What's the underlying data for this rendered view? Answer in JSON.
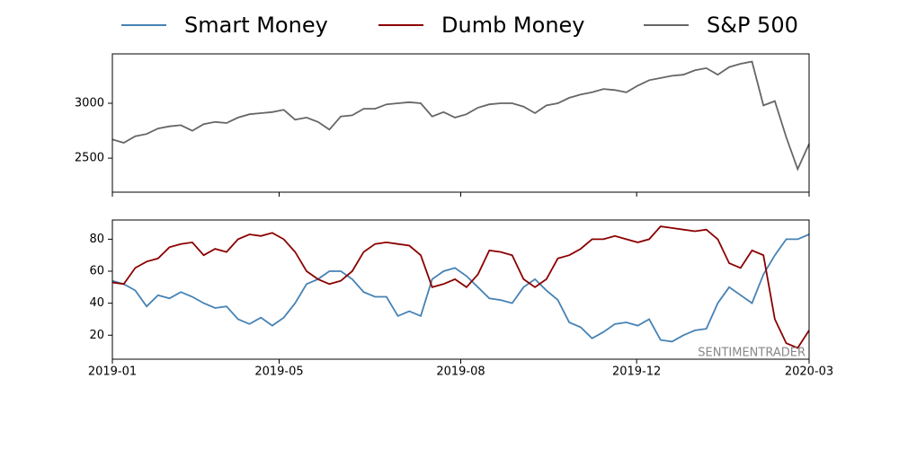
{
  "chart_data": [
    {
      "type": "line",
      "series": [
        {
          "name": "S&P 500",
          "color": "#666666",
          "values": [
            2670,
            2640,
            2700,
            2720,
            2770,
            2790,
            2800,
            2750,
            2810,
            2830,
            2820,
            2870,
            2900,
            2910,
            2920,
            2940,
            2850,
            2870,
            2830,
            2760,
            2880,
            2890,
            2950,
            2950,
            2990,
            3000,
            3010,
            3000,
            2880,
            2920,
            2870,
            2900,
            2960,
            2990,
            3000,
            3000,
            2970,
            2910,
            2980,
            3000,
            3050,
            3080,
            3100,
            3130,
            3120,
            3100,
            3160,
            3210,
            3230,
            3250,
            3260,
            3300,
            3320,
            3260,
            3330,
            3360,
            3380,
            2980,
            3020,
            2690,
            2400,
            2630
          ]
        }
      ],
      "xlim": [
        0,
        61
      ],
      "xticks": [
        {
          "value": 0,
          "label": "2019-01"
        },
        {
          "value": 14.6,
          "label": "2019-05"
        },
        {
          "value": 30.5,
          "label": "2019-08"
        },
        {
          "value": 45.9,
          "label": "2019-12"
        },
        {
          "value": 61,
          "label": "2020-03"
        }
      ],
      "ylim": [
        2190,
        3450
      ],
      "yticks": [
        2500,
        3000
      ]
    },
    {
      "type": "line",
      "series": [
        {
          "name": "Smart Money",
          "color": "#4682b4",
          "values": [
            54,
            52,
            48,
            38,
            45,
            43,
            47,
            44,
            40,
            37,
            38,
            30,
            27,
            31,
            26,
            31,
            40,
            52,
            55,
            60,
            60,
            55,
            47,
            44,
            44,
            32,
            35,
            32,
            55,
            60,
            62,
            57,
            50,
            43,
            42,
            40,
            50,
            55,
            48,
            42,
            28,
            25,
            18,
            22,
            27,
            28,
            26,
            30,
            17,
            16,
            20,
            23,
            24,
            40,
            50,
            45,
            40,
            58,
            70,
            80,
            80,
            83
          ]
        },
        {
          "name": "Dumb Money",
          "color": "#8b0000",
          "values": [
            53,
            52,
            62,
            66,
            68,
            75,
            77,
            78,
            70,
            74,
            72,
            80,
            83,
            82,
            84,
            80,
            72,
            60,
            55,
            52,
            54,
            60,
            72,
            77,
            78,
            77,
            76,
            70,
            50,
            52,
            55,
            50,
            58,
            73,
            72,
            70,
            55,
            50,
            55,
            68,
            70,
            74,
            80,
            80,
            82,
            80,
            78,
            80,
            88,
            87,
            86,
            85,
            86,
            80,
            65,
            62,
            73,
            70,
            30,
            15,
            12,
            23
          ]
        }
      ],
      "xlim": [
        0,
        61
      ],
      "xticks": [
        {
          "value": 0,
          "label": "2019-01"
        },
        {
          "value": 14.6,
          "label": "2019-05"
        },
        {
          "value": 30.5,
          "label": "2019-08"
        },
        {
          "value": 45.9,
          "label": "2019-12"
        },
        {
          "value": 61,
          "label": "2020-03"
        }
      ],
      "ylim": [
        5,
        92
      ],
      "yticks": [
        20,
        40,
        60,
        80
      ],
      "annotation": "SENTIMENTRADER"
    }
  ]
}
